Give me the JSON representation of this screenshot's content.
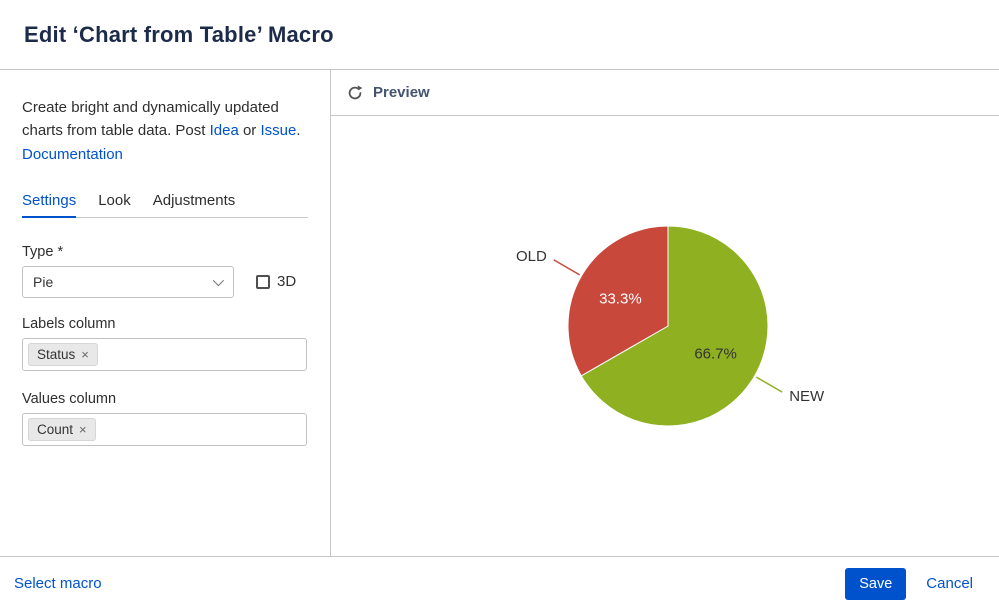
{
  "header": {
    "title": "Edit ‘Chart from Table’ Macro"
  },
  "sidebar": {
    "intro": {
      "text1": "Create bright and dynamically updated charts from table data. Post ",
      "link_idea": "Idea",
      "text2": " or ",
      "link_issue": "Issue",
      "text3": ". ",
      "link_docs": "Documentation"
    },
    "tabs": [
      {
        "label": "Settings",
        "active": true
      },
      {
        "label": "Look",
        "active": false
      },
      {
        "label": "Adjustments",
        "active": false
      }
    ],
    "type_label": "Type *",
    "type_value": "Pie",
    "threed_label": "3D",
    "labels_column": {
      "label": "Labels column",
      "chip": "Status",
      "remove_icon": "×"
    },
    "values_column": {
      "label": "Values column",
      "chip": "Count",
      "remove_icon": "×"
    }
  },
  "preview": {
    "title": "Preview"
  },
  "footer": {
    "select_macro": "Select macro",
    "save": "Save",
    "cancel": "Cancel"
  },
  "colors": {
    "accent_blue": "#0052cc",
    "link_blue": "#0052cc"
  },
  "chart_data": {
    "type": "pie",
    "title": "",
    "legend_position": "none",
    "start_angle_deg": 0,
    "direction": "clockwise",
    "slices": [
      {
        "label": "NEW",
        "value": 66.7,
        "percent_label": "66.7%",
        "color": "#8eb021",
        "text_color": "#333333"
      },
      {
        "label": "OLD",
        "value": 33.3,
        "percent_label": "33.3%",
        "color": "#c9483c",
        "text_color": "#ffffff"
      }
    ]
  }
}
